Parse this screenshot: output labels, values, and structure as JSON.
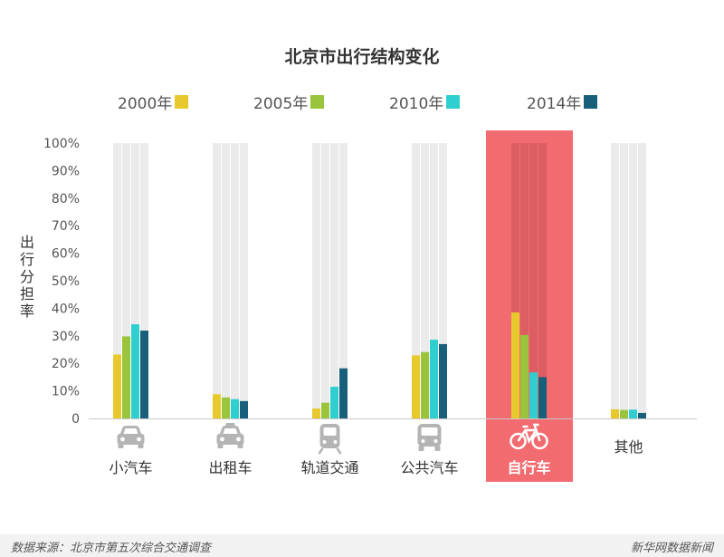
{
  "chart_data": {
    "type": "bar",
    "title": "北京市出行结构变化",
    "ylabel": "出行分担率",
    "categories": [
      "小汽车",
      "出租车",
      "轨道交通",
      "公共汽车",
      "自行车",
      "其他"
    ],
    "highlight_category": "自行车",
    "yticks": [
      "0",
      "10%",
      "20%",
      "30%",
      "40%",
      "50%",
      "60%",
      "70%",
      "80%",
      "90%",
      "100%"
    ],
    "ylim": [
      0,
      100
    ],
    "legend_position": "top",
    "series": [
      {
        "name": "2000年",
        "color": "#e8c92d",
        "values": [
          23.2,
          8.8,
          3.6,
          22.9,
          38.5,
          3.3
        ]
      },
      {
        "name": "2005年",
        "color": "#99c43c",
        "values": [
          29.8,
          7.6,
          5.7,
          24.1,
          30.3,
          3.1
        ]
      },
      {
        "name": "2010年",
        "color": "#2fcfd0",
        "values": [
          34.2,
          7.0,
          11.5,
          28.6,
          16.7,
          3.2
        ]
      },
      {
        "name": "2014年",
        "color": "#175f7a",
        "values": [
          31.9,
          6.3,
          18.2,
          27.0,
          15.0,
          2.0
        ]
      }
    ],
    "category_icons": [
      "car-icon",
      "taxi-icon",
      "train-icon",
      "bus-icon",
      "bicycle-icon",
      ""
    ]
  },
  "footer": {
    "source": "数据来源：北京市第五次综合交通调查",
    "brand": "新华网数据新闻"
  },
  "colors": {
    "highlight": "#f26b70",
    "track": "#ebebeb",
    "axis": "#c8c8c8",
    "icon": "#b4b4b4"
  }
}
